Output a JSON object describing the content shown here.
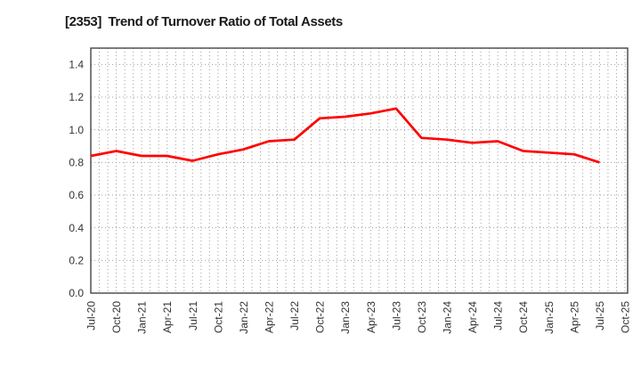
{
  "colors": {
    "line": "#ff0000",
    "grid": "#9e9e9e",
    "frame": "#444444",
    "tick_text": "#333333",
    "title_text": "#1a1a1a",
    "background": "#ffffff"
  },
  "chart_data": {
    "type": "line",
    "title": "[2353]  Trend of Turnover Ratio of Total Assets",
    "xlabel": "",
    "ylabel": "",
    "categories": [
      "Jul-20",
      "Oct-20",
      "Jan-21",
      "Apr-21",
      "Jul-21",
      "Oct-21",
      "Jan-22",
      "Apr-22",
      "Jul-22",
      "Oct-22",
      "Jan-23",
      "Apr-23",
      "Jul-23",
      "Oct-23",
      "Jan-24",
      "Apr-24",
      "Jul-24",
      "Oct-24",
      "Jan-25",
      "Apr-25",
      "Jul-25",
      "Oct-25"
    ],
    "values": [
      0.84,
      0.87,
      0.84,
      0.84,
      0.81,
      0.85,
      0.88,
      0.93,
      0.94,
      1.07,
      1.08,
      1.1,
      1.13,
      0.95,
      0.94,
      0.92,
      0.93,
      0.87,
      0.86,
      0.85,
      0.8,
      null
    ],
    "ylim": [
      0,
      1.5
    ],
    "ytick_step": 0.2,
    "ytick_labels": [
      "0.0",
      "0.2",
      "0.4",
      "0.6",
      "0.8",
      "1.0",
      "1.2",
      "1.4"
    ],
    "grid": true,
    "minor_x_gridlines_per_interval": 3,
    "legend_position": "none"
  }
}
